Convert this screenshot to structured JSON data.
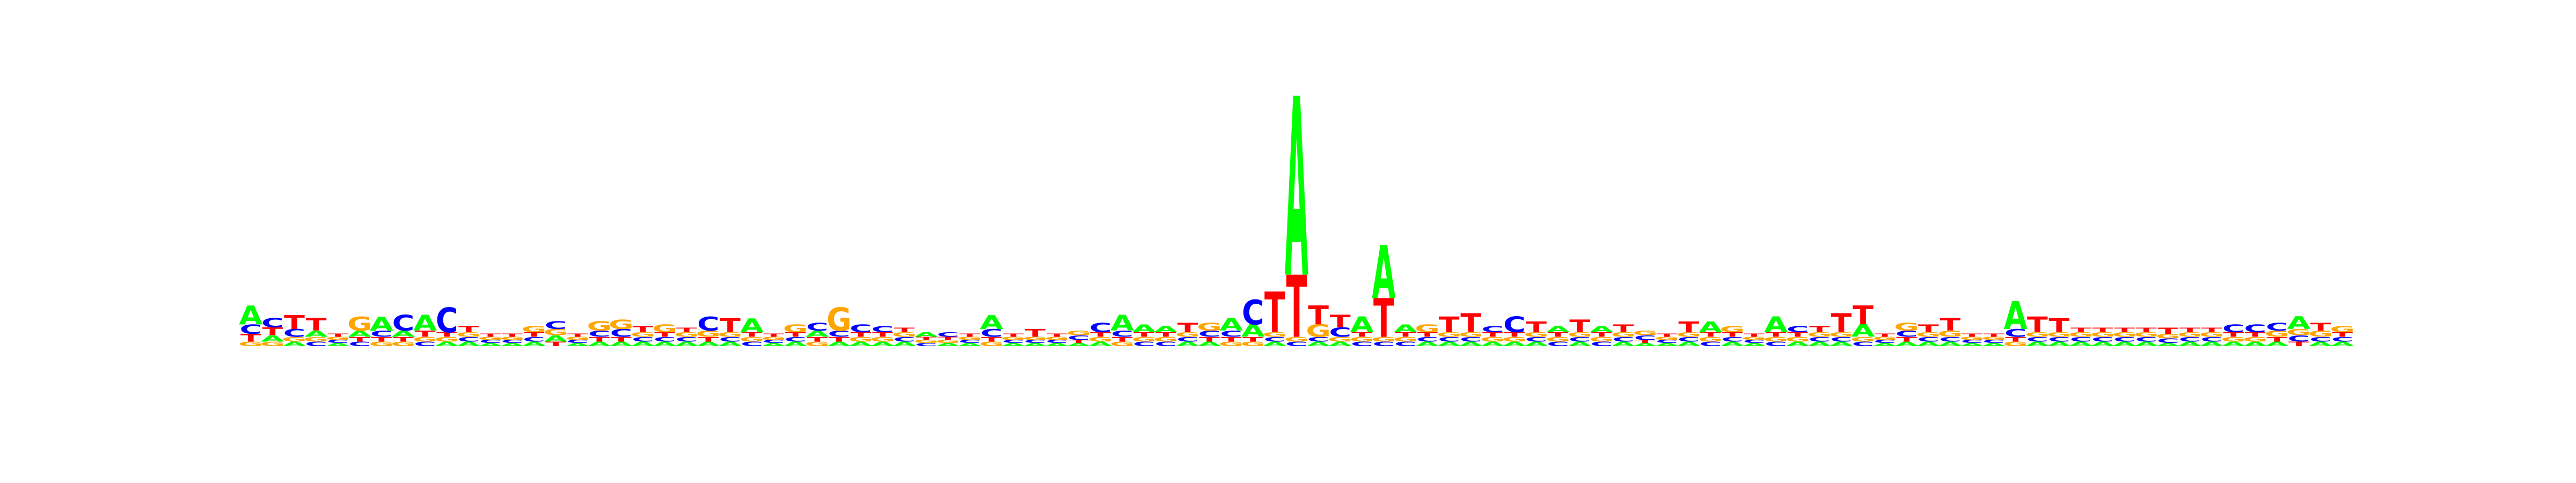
{
  "chart_data": {
    "type": "sequence-logo",
    "colors": {
      "A": "#00ff00",
      "C": "#0000ff",
      "G": "#ffa500",
      "T": "#ff0000"
    },
    "ylim": [
      0,
      2
    ],
    "positions": [
      {
        "A": 0.12,
        "C": 0.06,
        "G": 0.03,
        "T": 0.05
      },
      {
        "A": 0.04,
        "C": 0.06,
        "G": 0.03,
        "T": 0.05
      },
      {
        "A": 0.03,
        "C": 0.05,
        "G": 0.03,
        "T": 0.09
      },
      {
        "A": 0.04,
        "C": 0.03,
        "G": 0.03,
        "T": 0.08
      },
      {
        "A": 0.02,
        "C": 0.02,
        "G": 0.02,
        "T": 0.02
      },
      {
        "A": 0.04,
        "C": 0.03,
        "G": 0.09,
        "T": 0.03
      },
      {
        "A": 0.09,
        "C": 0.04,
        "G": 0.03,
        "T": 0.03
      },
      {
        "A": 0.04,
        "C": 0.1,
        "G": 0.03,
        "T": 0.03
      },
      {
        "A": 0.1,
        "C": 0.03,
        "G": 0.03,
        "T": 0.04
      },
      {
        "A": 0.03,
        "C": 0.16,
        "G": 0.03,
        "T": 0.03
      },
      {
        "A": 0.03,
        "C": 0.03,
        "G": 0.03,
        "T": 0.04
      },
      {
        "A": 0.02,
        "C": 0.02,
        "G": 0.02,
        "T": 0.02
      },
      {
        "A": 0.02,
        "C": 0.02,
        "G": 0.02,
        "T": 0.02
      },
      {
        "A": 0.03,
        "C": 0.03,
        "G": 0.04,
        "T": 0.03
      },
      {
        "A": 0.04,
        "C": 0.05,
        "G": 0.04,
        "T": 0.03
      },
      {
        "A": 0.02,
        "C": 0.02,
        "G": 0.02,
        "T": 0.02
      },
      {
        "A": 0.03,
        "C": 0.04,
        "G": 0.06,
        "T": 0.03
      },
      {
        "A": 0.03,
        "C": 0.05,
        "G": 0.06,
        "T": 0.03
      },
      {
        "A": 0.03,
        "C": 0.03,
        "G": 0.03,
        "T": 0.04
      },
      {
        "A": 0.03,
        "C": 0.03,
        "G": 0.05,
        "T": 0.03
      },
      {
        "A": 0.03,
        "C": 0.03,
        "G": 0.03,
        "T": 0.03
      },
      {
        "A": 0.03,
        "C": 0.09,
        "G": 0.04,
        "T": 0.03
      },
      {
        "A": 0.03,
        "C": 0.03,
        "G": 0.03,
        "T": 0.09
      },
      {
        "A": 0.09,
        "C": 0.03,
        "G": 0.03,
        "T": 0.03
      },
      {
        "A": 0.02,
        "C": 0.02,
        "G": 0.02,
        "T": 0.02
      },
      {
        "A": 0.03,
        "C": 0.03,
        "G": 0.05,
        "T": 0.03
      },
      {
        "A": 0.04,
        "C": 0.05,
        "G": 0.03,
        "T": 0.03
      },
      {
        "A": 0.03,
        "C": 0.04,
        "G": 0.15,
        "T": 0.03
      },
      {
        "A": 0.03,
        "C": 0.05,
        "G": 0.03,
        "T": 0.03
      },
      {
        "A": 0.03,
        "C": 0.04,
        "G": 0.03,
        "T": 0.03
      },
      {
        "A": 0.03,
        "C": 0.03,
        "G": 0.03,
        "T": 0.03
      },
      {
        "A": 0.03,
        "C": 0.02,
        "G": 0.02,
        "T": 0.02
      },
      {
        "A": 0.02,
        "C": 0.03,
        "G": 0.02,
        "T": 0.02
      },
      {
        "A": 0.02,
        "C": 0.02,
        "G": 0.02,
        "T": 0.02
      },
      {
        "A": 0.09,
        "C": 0.05,
        "G": 0.03,
        "T": 0.03
      },
      {
        "A": 0.02,
        "C": 0.02,
        "G": 0.02,
        "T": 0.02
      },
      {
        "A": 0.02,
        "C": 0.02,
        "G": 0.02,
        "T": 0.05
      },
      {
        "A": 0.02,
        "C": 0.02,
        "G": 0.02,
        "T": 0.02
      },
      {
        "A": 0.02,
        "C": 0.03,
        "G": 0.03,
        "T": 0.02
      },
      {
        "A": 0.03,
        "C": 0.06,
        "G": 0.03,
        "T": 0.03
      },
      {
        "A": 0.1,
        "C": 0.04,
        "G": 0.03,
        "T": 0.03
      },
      {
        "A": 0.05,
        "C": 0.03,
        "G": 0.03,
        "T": 0.03
      },
      {
        "A": 0.04,
        "C": 0.03,
        "G": 0.03,
        "T": 0.03
      },
      {
        "A": 0.03,
        "C": 0.03,
        "G": 0.03,
        "T": 0.06
      },
      {
        "A": 0.03,
        "C": 0.04,
        "G": 0.05,
        "T": 0.03
      },
      {
        "A": 0.08,
        "C": 0.04,
        "G": 0.03,
        "T": 0.03
      },
      {
        "A": 0.08,
        "C": 0.16,
        "G": 0.03,
        "T": 0.03
      },
      {
        "A": 0.03,
        "C": 0.03,
        "G": 0.03,
        "T": 0.26
      },
      {
        "A": 1.15,
        "C": 0.03,
        "G": 0.03,
        "T": 0.4
      },
      {
        "A": 0.03,
        "C": 0.03,
        "G": 0.08,
        "T": 0.12
      },
      {
        "A": 0.03,
        "C": 0.06,
        "G": 0.03,
        "T": 0.08
      },
      {
        "A": 0.1,
        "C": 0.03,
        "G": 0.03,
        "T": 0.03
      },
      {
        "A": 0.34,
        "C": 0.03,
        "G": 0.03,
        "T": 0.25
      },
      {
        "A": 0.05,
        "C": 0.03,
        "G": 0.03,
        "T": 0.03
      },
      {
        "A": 0.03,
        "C": 0.03,
        "G": 0.05,
        "T": 0.03
      },
      {
        "A": 0.03,
        "C": 0.03,
        "G": 0.03,
        "T": 0.1
      },
      {
        "A": 0.03,
        "C": 0.03,
        "G": 0.03,
        "T": 0.12
      },
      {
        "A": 0.03,
        "C": 0.04,
        "G": 0.03,
        "T": 0.03
      },
      {
        "A": 0.03,
        "C": 0.1,
        "G": 0.03,
        "T": 0.03
      },
      {
        "A": 0.03,
        "C": 0.03,
        "G": 0.03,
        "T": 0.07
      },
      {
        "A": 0.04,
        "C": 0.03,
        "G": 0.03,
        "T": 0.03
      },
      {
        "A": 0.03,
        "C": 0.03,
        "G": 0.03,
        "T": 0.08
      },
      {
        "A": 0.04,
        "C": 0.03,
        "G": 0.03,
        "T": 0.03
      },
      {
        "A": 0.03,
        "C": 0.03,
        "G": 0.03,
        "T": 0.05
      },
      {
        "A": 0.02,
        "C": 0.03,
        "G": 0.03,
        "T": 0.02
      },
      {
        "A": 0.02,
        "C": 0.02,
        "G": 0.02,
        "T": 0.02
      },
      {
        "A": 0.03,
        "C": 0.03,
        "G": 0.03,
        "T": 0.07
      },
      {
        "A": 0.07,
        "C": 0.03,
        "G": 0.03,
        "T": 0.03
      },
      {
        "A": 0.03,
        "C": 0.03,
        "G": 0.04,
        "T": 0.03
      },
      {
        "A": 0.02,
        "C": 0.02,
        "G": 0.02,
        "T": 0.02
      },
      {
        "A": 0.1,
        "C": 0.03,
        "G": 0.03,
        "T": 0.03
      },
      {
        "A": 0.03,
        "C": 0.04,
        "G": 0.03,
        "T": 0.03
      },
      {
        "A": 0.03,
        "C": 0.03,
        "G": 0.03,
        "T": 0.04
      },
      {
        "A": 0.03,
        "C": 0.03,
        "G": 0.03,
        "T": 0.12
      },
      {
        "A": 0.08,
        "C": 0.03,
        "G": 0.03,
        "T": 0.12
      },
      {
        "A": 0.02,
        "C": 0.02,
        "G": 0.02,
        "T": 0.02
      },
      {
        "A": 0.03,
        "C": 0.04,
        "G": 0.05,
        "T": 0.03
      },
      {
        "A": 0.03,
        "C": 0.03,
        "G": 0.03,
        "T": 0.05
      },
      {
        "A": 0.03,
        "C": 0.03,
        "G": 0.04,
        "T": 0.08
      },
      {
        "A": 0.02,
        "C": 0.02,
        "G": 0.02,
        "T": 0.02
      },
      {
        "A": 0.02,
        "C": 0.02,
        "G": 0.02,
        "T": 0.02
      },
      {
        "A": 0.18,
        "C": 0.05,
        "G": 0.03,
        "T": 0.03
      },
      {
        "A": 0.03,
        "C": 0.03,
        "G": 0.03,
        "T": 0.1
      },
      {
        "A": 0.03,
        "C": 0.03,
        "G": 0.03,
        "T": 0.09
      },
      {
        "A": 0.03,
        "C": 0.03,
        "G": 0.03,
        "T": 0.03
      },
      {
        "A": 0.03,
        "C": 0.03,
        "G": 0.03,
        "T": 0.03
      },
      {
        "A": 0.03,
        "C": 0.03,
        "G": 0.03,
        "T": 0.03
      },
      {
        "A": 0.03,
        "C": 0.03,
        "G": 0.03,
        "T": 0.03
      },
      {
        "A": 0.02,
        "C": 0.03,
        "G": 0.03,
        "T": 0.04
      },
      {
        "A": 0.03,
        "C": 0.03,
        "G": 0.03,
        "T": 0.03
      },
      {
        "A": 0.03,
        "C": 0.03,
        "G": 0.03,
        "T": 0.03
      },
      {
        "A": 0.03,
        "C": 0.05,
        "G": 0.03,
        "T": 0.03
      },
      {
        "A": 0.03,
        "C": 0.05,
        "G": 0.03,
        "T": 0.03
      },
      {
        "A": 0.03,
        "C": 0.05,
        "G": 0.04,
        "T": 0.03
      },
      {
        "A": 0.08,
        "C": 0.04,
        "G": 0.04,
        "T": 0.03
      },
      {
        "A": 0.03,
        "C": 0.03,
        "G": 0.04,
        "T": 0.05
      },
      {
        "A": 0.03,
        "C": 0.03,
        "G": 0.04,
        "T": 0.03
      }
    ]
  }
}
